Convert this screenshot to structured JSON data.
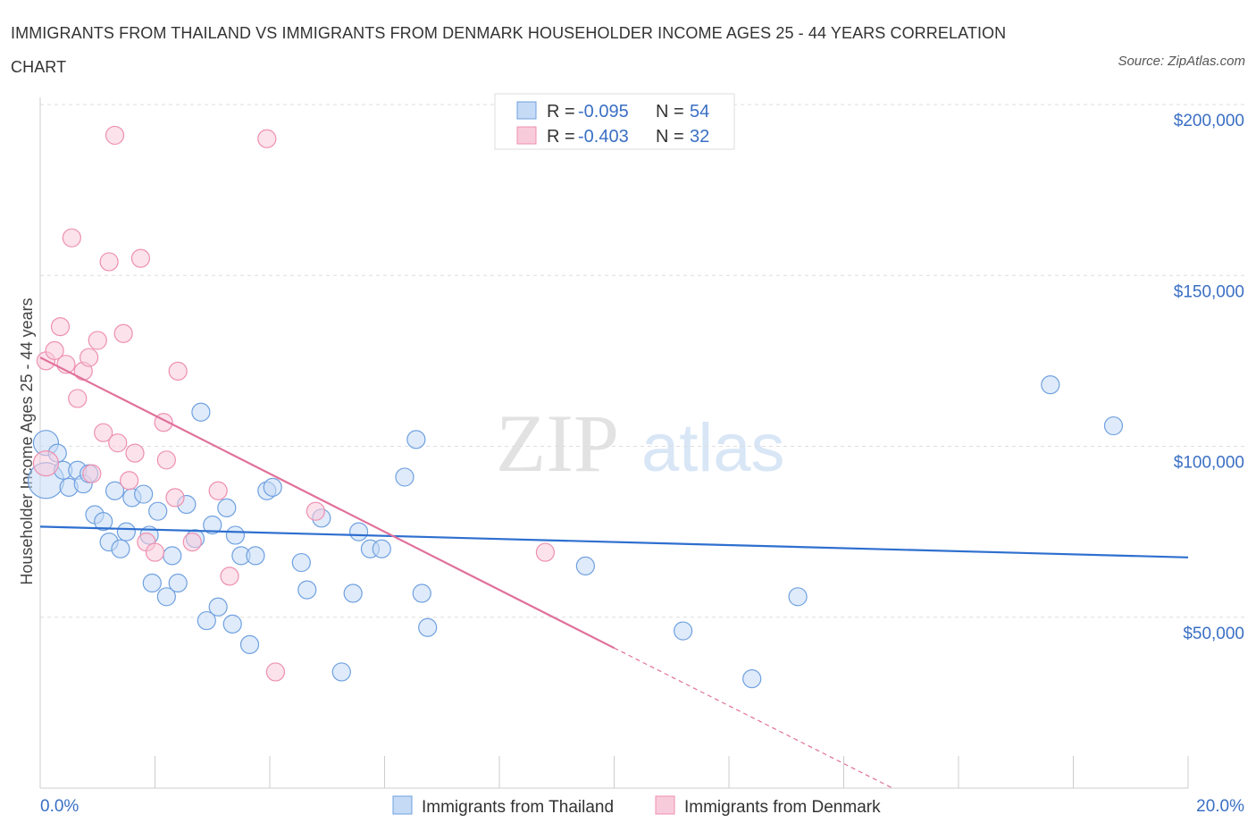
{
  "title": "IMMIGRANTS FROM THAILAND VS IMMIGRANTS FROM DENMARK HOUSEHOLDER INCOME AGES 25 - 44 YEARS CORRELATION CHART",
  "source": "Source: ZipAtlas.com",
  "watermark": {
    "zip": "ZIP",
    "atlas": "atlas"
  },
  "legend": {
    "r_label": "R =",
    "n_label": "N =",
    "rows": [
      {
        "r": "-0.095",
        "n": "54",
        "color": "#a9c8f0"
      },
      {
        "r": "-0.403",
        "n": "32",
        "color": "#f5b8cc"
      }
    ]
  },
  "chart_data": {
    "type": "scatter",
    "xlabel": "",
    "ylabel": "Householder Income Ages 25 - 44 years",
    "x_tick_labels": [
      "0.0%",
      "20.0%"
    ],
    "y_tick_labels": [
      "$50,000",
      "$100,000",
      "$150,000",
      "$200,000"
    ],
    "xlim": [
      0,
      20
    ],
    "ylim": [
      0,
      200000
    ],
    "y_ticks": [
      50000,
      100000,
      150000,
      200000
    ],
    "grid": true,
    "series": [
      {
        "name": "Immigrants from Thailand",
        "color": "#6fa0e0",
        "fill": "#c5daf5",
        "trend": {
          "x": [
            0,
            20
          ],
          "y": [
            76500,
            67500
          ],
          "color": "#2e6fcf"
        },
        "points": [
          [
            0.1,
            101000,
            14
          ],
          [
            0.1,
            90000,
            20
          ],
          [
            0.3,
            98000,
            10
          ],
          [
            0.4,
            93000,
            10
          ],
          [
            0.5,
            88000,
            10
          ],
          [
            0.65,
            93000,
            10
          ],
          [
            0.75,
            89000,
            10
          ],
          [
            0.85,
            92000,
            10
          ],
          [
            0.95,
            80000,
            10
          ],
          [
            1.1,
            78000,
            10
          ],
          [
            1.2,
            72000,
            10
          ],
          [
            1.3,
            87000,
            10
          ],
          [
            1.4,
            70000,
            10
          ],
          [
            1.5,
            75000,
            10
          ],
          [
            1.6,
            85000,
            10
          ],
          [
            1.8,
            86000,
            10
          ],
          [
            1.9,
            74000,
            10
          ],
          [
            1.95,
            60000,
            10
          ],
          [
            2.05,
            81000,
            10
          ],
          [
            2.2,
            56000,
            10
          ],
          [
            2.3,
            68000,
            10
          ],
          [
            2.4,
            60000,
            10
          ],
          [
            2.55,
            83000,
            10
          ],
          [
            2.7,
            73000,
            10
          ],
          [
            2.8,
            110000,
            10
          ],
          [
            2.9,
            49000,
            10
          ],
          [
            3.0,
            77000,
            10
          ],
          [
            3.1,
            53000,
            10
          ],
          [
            3.25,
            82000,
            10
          ],
          [
            3.35,
            48000,
            10
          ],
          [
            3.4,
            74000,
            10
          ],
          [
            3.5,
            68000,
            10
          ],
          [
            3.65,
            42000,
            10
          ],
          [
            3.75,
            68000,
            10
          ],
          [
            3.95,
            87000,
            10
          ],
          [
            4.05,
            88000,
            10
          ],
          [
            4.55,
            66000,
            10
          ],
          [
            4.65,
            58000,
            10
          ],
          [
            4.9,
            79000,
            10
          ],
          [
            5.25,
            34000,
            10
          ],
          [
            5.45,
            57000,
            10
          ],
          [
            5.55,
            75000,
            10
          ],
          [
            5.75,
            70000,
            10
          ],
          [
            5.95,
            70000,
            10
          ],
          [
            6.35,
            91000,
            10
          ],
          [
            6.55,
            102000,
            10
          ],
          [
            6.65,
            57000,
            10
          ],
          [
            6.75,
            47000,
            10
          ],
          [
            9.5,
            65000,
            10
          ],
          [
            11.2,
            46000,
            10
          ],
          [
            12.4,
            32000,
            10
          ],
          [
            13.2,
            56000,
            10
          ],
          [
            17.6,
            118000,
            10
          ],
          [
            18.7,
            106000,
            10
          ]
        ]
      },
      {
        "name": "Immigrants from Denmark",
        "color": "#ee8fb0",
        "fill": "#f8cbdb",
        "trend": {
          "x": [
            0,
            10.0
          ],
          "y": [
            126000,
            41000
          ],
          "color": "#e0709a"
        },
        "trend_extension": {
          "x": [
            10.0,
            14.85
          ],
          "y": [
            41000,
            0
          ]
        },
        "points": [
          [
            0.1,
            95000,
            14
          ],
          [
            0.1,
            125000,
            10
          ],
          [
            0.25,
            128000,
            10
          ],
          [
            0.35,
            135000,
            10
          ],
          [
            0.45,
            124000,
            10
          ],
          [
            0.55,
            161000,
            10
          ],
          [
            0.65,
            114000,
            10
          ],
          [
            0.75,
            122000,
            10
          ],
          [
            0.85,
            126000,
            10
          ],
          [
            0.9,
            92000,
            10
          ],
          [
            1.0,
            131000,
            10
          ],
          [
            1.1,
            104000,
            10
          ],
          [
            1.2,
            154000,
            10
          ],
          [
            1.3,
            191000,
            10
          ],
          [
            1.35,
            101000,
            10
          ],
          [
            1.45,
            133000,
            10
          ],
          [
            1.55,
            90000,
            10
          ],
          [
            1.65,
            98000,
            10
          ],
          [
            1.75,
            155000,
            10
          ],
          [
            1.85,
            72000,
            10
          ],
          [
            2.0,
            69000,
            10
          ],
          [
            2.15,
            107000,
            10
          ],
          [
            2.2,
            96000,
            10
          ],
          [
            2.35,
            85000,
            10
          ],
          [
            2.4,
            122000,
            10
          ],
          [
            2.65,
            72000,
            10
          ],
          [
            3.1,
            87000,
            10
          ],
          [
            3.3,
            62000,
            10
          ],
          [
            3.95,
            190000,
            10
          ],
          [
            4.1,
            34000,
            10
          ],
          [
            4.8,
            81000,
            10
          ],
          [
            8.8,
            69000,
            10
          ]
        ]
      }
    ]
  }
}
